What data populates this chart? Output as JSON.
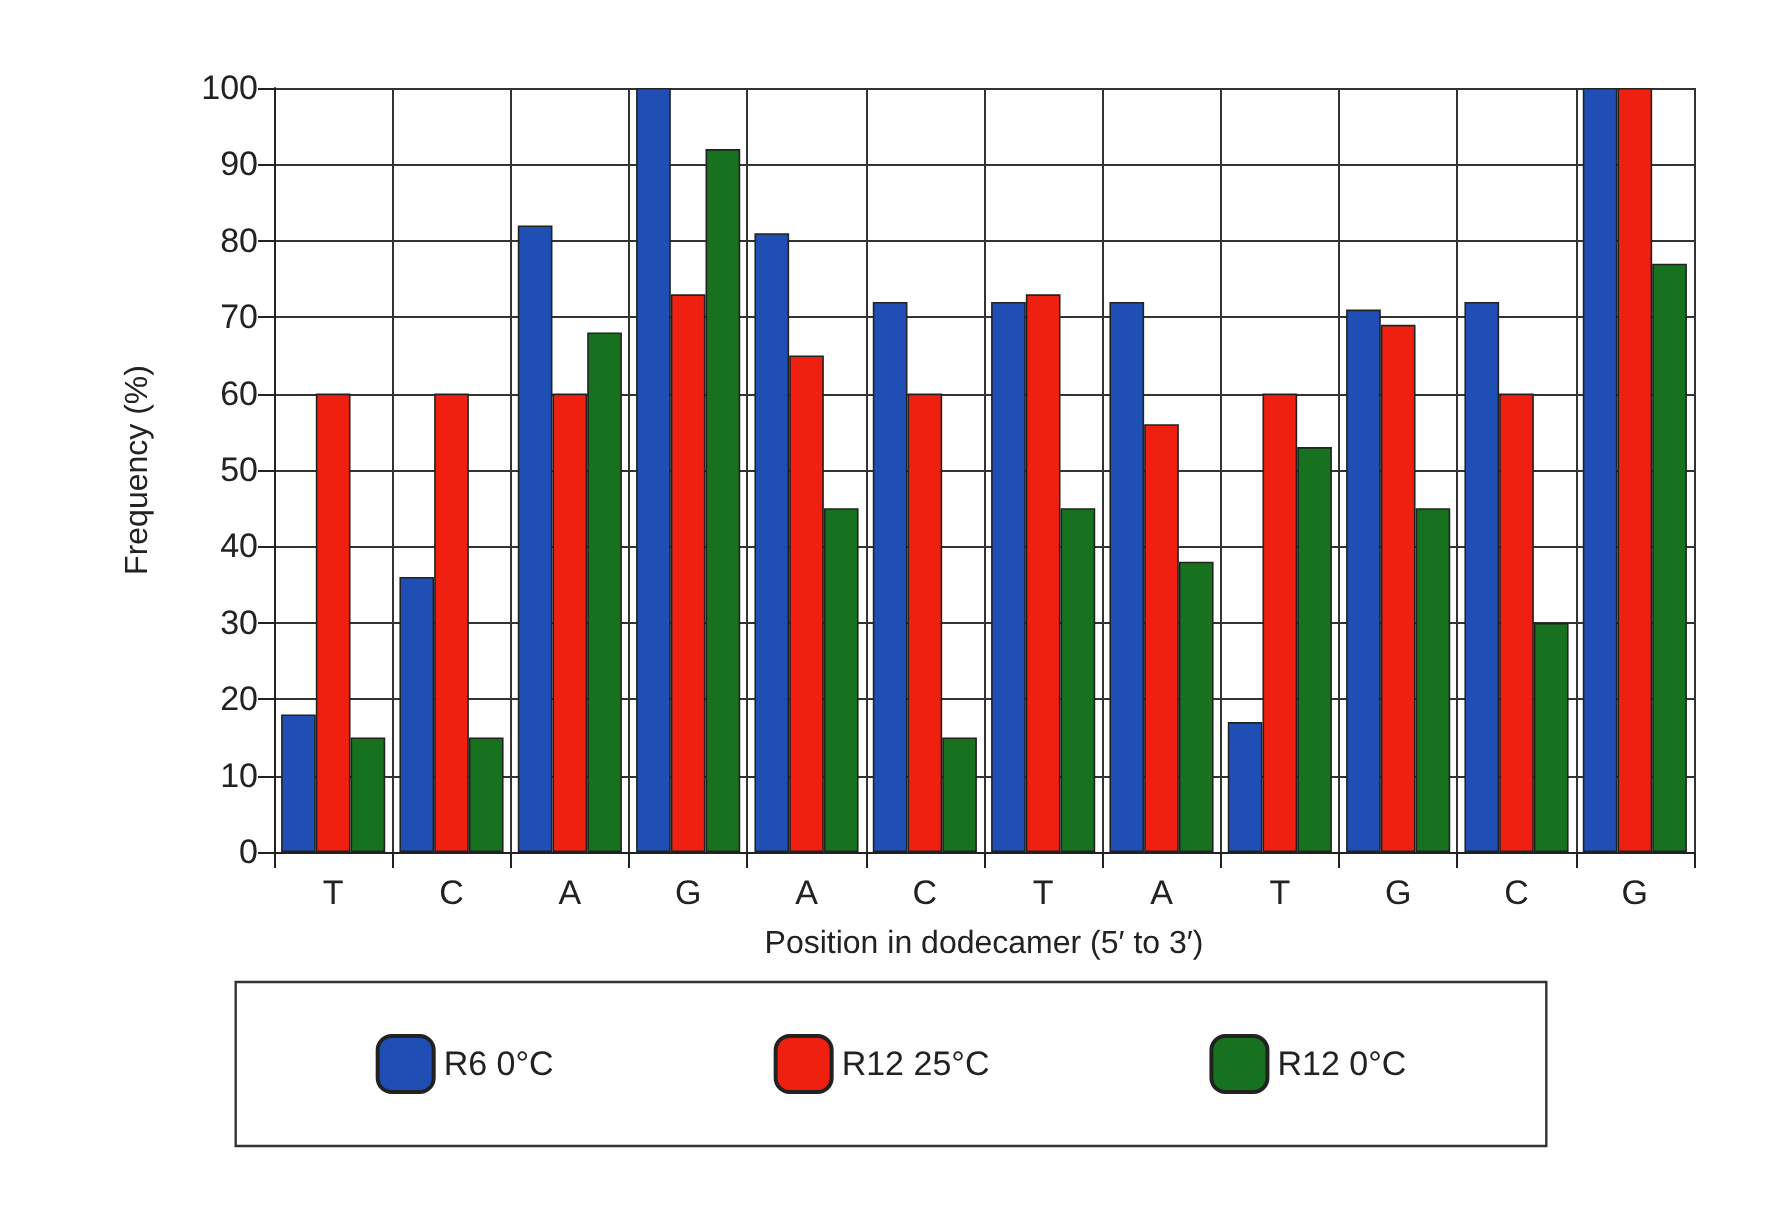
{
  "chart_data": {
    "type": "bar",
    "xlabel": "Position in dodecamer (5′ to 3′)",
    "ylabel": "Frequency (%)",
    "categories": [
      "T",
      "C",
      "A",
      "G",
      "A",
      "C",
      "T",
      "A",
      "T",
      "G",
      "C",
      "G"
    ],
    "series": [
      {
        "name": "R6 0°C",
        "color": "#1f4fb5",
        "values": [
          18,
          36,
          82,
          100,
          81,
          72,
          72,
          72,
          17,
          71,
          72,
          100
        ]
      },
      {
        "name": "R12 25°C",
        "color": "#f02010",
        "values": [
          60,
          60,
          60,
          73,
          65,
          60,
          73,
          56,
          60,
          69,
          60,
          100
        ]
      },
      {
        "name": "R12 0°C",
        "color": "#16721e",
        "values": [
          15,
          15,
          68,
          92,
          45,
          15,
          45,
          38,
          53,
          45,
          30,
          77
        ]
      }
    ],
    "ylim": [
      0,
      100
    ],
    "yticks": [
      0,
      10,
      20,
      30,
      40,
      50,
      60,
      70,
      80,
      90,
      100
    ],
    "grid": true,
    "legend": "bottom"
  }
}
